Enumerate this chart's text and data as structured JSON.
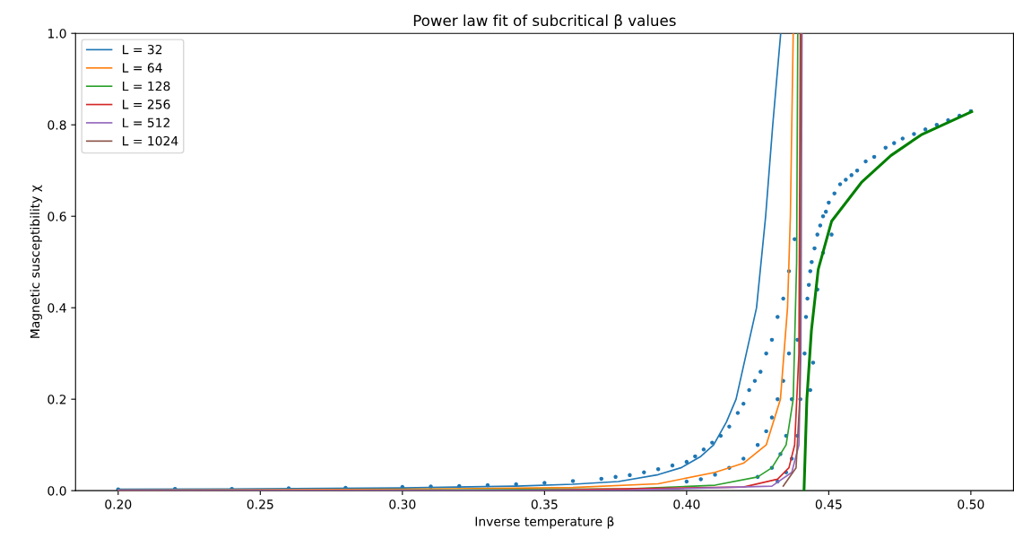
{
  "chart_data": {
    "type": "line",
    "title": "Power law fit of subcritical β values",
    "xlabel": "Inverse temperature β",
    "ylabel": "Magnetic susceptibility χ",
    "xlim": [
      0.185,
      0.515
    ],
    "ylim": [
      0,
      1.0
    ],
    "xticks": [
      {
        "value": 0.2,
        "label": "0.20"
      },
      0.25,
      {
        "value": 0.3,
        "label": "0.30"
      },
      0.35,
      {
        "value": 0.4,
        "label": "0.40"
      },
      0.45,
      {
        "value": 0.5,
        "label": "0.50"
      }
    ],
    "yticks": [
      {
        "value": 0,
        "label": "0.0"
      },
      0.2,
      0.4,
      0.6,
      0.8,
      {
        "value": 1,
        "label": "1.0"
      }
    ],
    "grid": false,
    "legend": "top left",
    "marker": "none",
    "line_style": "solid",
    "series": [
      {
        "type": "scatter",
        "color": "#1f77b4",
        "x": [
          0.2,
          0.22,
          0.24,
          0.26,
          0.28,
          0.3,
          0.31,
          0.32,
          0.33,
          0.34,
          0.35,
          0.36,
          0.37,
          0.375,
          0.38,
          0.385,
          0.39,
          0.395,
          0.4,
          0.403,
          0.406,
          0.409,
          0.412,
          0.415,
          0.418,
          0.42,
          0.422,
          0.424,
          0.426,
          0.428,
          0.43,
          0.432,
          0.434,
          0.436,
          0.438,
          0.4,
          0.405,
          0.41,
          0.415,
          0.42,
          0.425,
          0.428,
          0.43,
          0.432,
          0.434,
          0.436,
          0.425,
          0.43,
          0.433,
          0.435,
          0.437,
          0.439,
          0.432,
          0.435,
          0.437,
          0.439,
          0.44,
          0.4415,
          0.442,
          0.4425,
          0.443,
          0.4435,
          0.444,
          0.445,
          0.446,
          0.447,
          0.448,
          0.449,
          0.45,
          0.452,
          0.454,
          0.456,
          0.458,
          0.46,
          0.463,
          0.466,
          0.47,
          0.473,
          0.476,
          0.48,
          0.484,
          0.488,
          0.492,
          0.496,
          0.5,
          0.4435,
          0.4445,
          0.446,
          0.448,
          0.451
        ],
        "values": [
          0.003,
          0.004,
          0.004,
          0.005,
          0.006,
          0.008,
          0.009,
          0.01,
          0.012,
          0.014,
          0.017,
          0.021,
          0.026,
          0.03,
          0.034,
          0.04,
          0.047,
          0.055,
          0.063,
          0.075,
          0.09,
          0.105,
          0.12,
          0.14,
          0.17,
          0.19,
          0.22,
          0.24,
          0.26,
          0.3,
          0.33,
          0.38,
          0.42,
          0.48,
          0.55,
          0.02,
          0.025,
          0.035,
          0.05,
          0.07,
          0.1,
          0.13,
          0.16,
          0.2,
          0.24,
          0.3,
          0.03,
          0.05,
          0.08,
          0.12,
          0.2,
          0.33,
          0.02,
          0.04,
          0.07,
          0.12,
          0.2,
          0.3,
          0.38,
          0.42,
          0.45,
          0.48,
          0.5,
          0.53,
          0.56,
          0.58,
          0.6,
          0.61,
          0.63,
          0.65,
          0.67,
          0.68,
          0.69,
          0.7,
          0.72,
          0.73,
          0.75,
          0.76,
          0.77,
          0.78,
          0.79,
          0.8,
          0.81,
          0.82,
          0.83,
          0.22,
          0.28,
          0.44,
          0.52,
          0.56
        ]
      },
      {
        "name": "L = 32",
        "color": "#1f77b4",
        "x": [
          0.2,
          0.25,
          0.3,
          0.34,
          0.36,
          0.376,
          0.39,
          0.398,
          0.405,
          0.4095,
          0.414,
          0.4174,
          0.421,
          0.4246,
          0.4278,
          0.4303,
          0.4331
        ],
        "values": [
          0.003,
          0.004,
          0.006,
          0.01,
          0.014,
          0.02,
          0.035,
          0.05,
          0.075,
          0.1,
          0.15,
          0.2,
          0.3,
          0.4,
          0.6,
          0.8,
          1.0
        ]
      },
      {
        "name": "L = 64",
        "color": "#ff7f0e",
        "x": [
          0.2,
          0.3,
          0.36,
          0.39,
          0.41,
          0.42,
          0.428,
          0.433,
          0.4355,
          0.4365,
          0.4375
        ],
        "values": [
          0.001,
          0.003,
          0.007,
          0.015,
          0.04,
          0.06,
          0.1,
          0.2,
          0.4,
          0.6,
          1.0
        ]
      },
      {
        "name": "L = 128",
        "color": "#2ca02c",
        "x": [
          0.2,
          0.3,
          0.38,
          0.41,
          0.425,
          0.43,
          0.435,
          0.4375,
          0.4387,
          0.4391
        ],
        "values": [
          0.0,
          0.001,
          0.004,
          0.012,
          0.03,
          0.05,
          0.1,
          0.2,
          0.5,
          1.0
        ]
      },
      {
        "name": "L = 256",
        "color": "#d62728",
        "x": [
          0.2,
          0.35,
          0.42,
          0.432,
          0.436,
          0.438,
          0.4395,
          0.44
        ],
        "values": [
          0.0,
          0.001,
          0.008,
          0.025,
          0.05,
          0.1,
          0.3,
          1.0
        ]
      },
      {
        "name": "L = 512",
        "color": "#9467bd",
        "x": [
          0.2,
          0.38,
          0.43,
          0.437,
          0.4395,
          0.4402,
          0.4406
        ],
        "values": [
          0.0,
          0.001,
          0.01,
          0.04,
          0.1,
          0.3,
          1.0
        ]
      },
      {
        "name": "L = 1024",
        "color": "#8c564b",
        "x": [
          0.434,
          0.4385,
          0.4398,
          0.4403
        ],
        "values": [
          0.01,
          0.05,
          0.2,
          1.0
        ]
      },
      {
        "color": "#008000",
        "x": [
          0.4413,
          0.4418,
          0.4423,
          0.4439,
          0.4463,
          0.451,
          0.4615,
          0.4719,
          0.4825,
          0.5003
        ],
        "values": [
          0.0,
          0.1,
          0.2,
          0.35,
          0.484,
          0.589,
          0.674,
          0.733,
          0.778,
          0.829
        ]
      }
    ]
  }
}
